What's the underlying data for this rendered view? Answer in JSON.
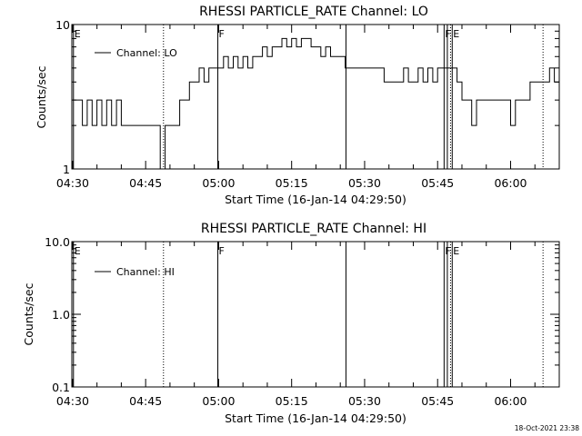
{
  "chart_data": [
    {
      "type": "line",
      "title": "RHESSI PARTICLE_RATE Channel: LO",
      "xlabel": "Start Time (16-Jan-14 04:29:50)",
      "ylabel": "Counts/sec",
      "yscale": "log",
      "ylim": [
        1,
        10
      ],
      "yticks": [
        "1",
        "10"
      ],
      "xlim": [
        "04:29:50",
        "06:10:00"
      ],
      "xticks": [
        "04:30",
        "04:45",
        "05:00",
        "05:15",
        "05:30",
        "05:45",
        "06:00"
      ],
      "grid": false,
      "legend_position": "top-left",
      "series": [
        {
          "name": "Channel: LO",
          "x": [
            "04:30",
            "04:31",
            "04:32",
            "04:33",
            "04:34",
            "04:35",
            "04:36",
            "04:37",
            "04:38",
            "04:39",
            "04:40",
            "04:41",
            "04:42",
            "04:43",
            "04:44",
            "04:45",
            "04:46",
            "04:47",
            "04:48",
            "04:49",
            "04:50",
            "04:51",
            "04:52",
            "04:53",
            "04:54",
            "04:55",
            "04:56",
            "04:57",
            "04:58",
            "04:59",
            "05:00",
            "05:01",
            "05:02",
            "05:03",
            "05:04",
            "05:05",
            "05:06",
            "05:07",
            "05:08",
            "05:09",
            "05:10",
            "05:11",
            "05:12",
            "05:13",
            "05:14",
            "05:15",
            "05:16",
            "05:17",
            "05:18",
            "05:19",
            "05:20",
            "05:21",
            "05:22",
            "05:23",
            "05:24",
            "05:25",
            "05:26",
            "05:27",
            "05:28",
            "05:29",
            "05:30",
            "05:31",
            "05:32",
            "05:33",
            "05:34",
            "05:35",
            "05:36",
            "05:37",
            "05:38",
            "05:39",
            "05:40",
            "05:41",
            "05:42",
            "05:43",
            "05:44",
            "05:45",
            "05:46",
            "05:47",
            "05:48",
            "05:49",
            "05:50",
            "05:51",
            "05:52",
            "05:53",
            "05:54",
            "05:55",
            "05:56",
            "05:57",
            "05:58",
            "05:59",
            "06:00",
            "06:01",
            "06:02",
            "06:03",
            "06:04",
            "06:05",
            "06:06",
            "06:07",
            "06:08",
            "06:09"
          ],
          "y": [
            3,
            3,
            2,
            3,
            2,
            3,
            2,
            3,
            2,
            3,
            2,
            2,
            2,
            2,
            2,
            2,
            2,
            2,
            1,
            2,
            2,
            2,
            3,
            3,
            4,
            4,
            5,
            4,
            5,
            5,
            5,
            6,
            5,
            6,
            5,
            6,
            5,
            6,
            6,
            7,
            6,
            7,
            7,
            8,
            7,
            8,
            7,
            8,
            8,
            7,
            7,
            6,
            7,
            6,
            6,
            6,
            5,
            5,
            5,
            5,
            5,
            5,
            5,
            5,
            4,
            4,
            4,
            4,
            5,
            4,
            4,
            5,
            4,
            5,
            4,
            5,
            5,
            5,
            5,
            4,
            3,
            3,
            2,
            3,
            3,
            3,
            3,
            3,
            3,
            3,
            2,
            3,
            3,
            3,
            4,
            4,
            4,
            4,
            5,
            4
          ]
        }
      ],
      "annotations": [
        {
          "label": "E",
          "time": "04:30:10",
          "style": "solid"
        },
        {
          "label": "",
          "time": "04:48:40",
          "style": "dotted"
        },
        {
          "label": "F",
          "time": "04:59:50",
          "style": "solid"
        },
        {
          "label": "",
          "time": "05:26:10",
          "style": "solid"
        },
        {
          "label": "F",
          "time": "05:46:20",
          "style": "solid"
        },
        {
          "label": "",
          "time": "05:47:00",
          "style": "solid"
        },
        {
          "label": "",
          "time": "05:47:40",
          "style": "dotted"
        },
        {
          "label": "E",
          "time": "05:48:00",
          "style": "solid"
        },
        {
          "label": "",
          "time": "06:06:40",
          "style": "dotted"
        }
      ]
    },
    {
      "type": "line",
      "title": "RHESSI PARTICLE_RATE Channel: HI",
      "xlabel": "Start Time (16-Jan-14 04:29:50)",
      "ylabel": "Counts/sec",
      "yscale": "log",
      "ylim": [
        0.1,
        10
      ],
      "yticks": [
        "0.1",
        "1.0",
        "10.0"
      ],
      "xlim": [
        "04:29:50",
        "06:10:00"
      ],
      "xticks": [
        "04:30",
        "04:45",
        "05:00",
        "05:15",
        "05:30",
        "05:45",
        "06:00"
      ],
      "grid": false,
      "legend_position": "top-left",
      "series": [
        {
          "name": "Channel: HI",
          "x": [],
          "y": []
        }
      ],
      "annotations": [
        {
          "label": "E",
          "time": "04:30:10",
          "style": "solid"
        },
        {
          "label": "",
          "time": "04:48:40",
          "style": "dotted"
        },
        {
          "label": "F",
          "time": "04:59:50",
          "style": "solid"
        },
        {
          "label": "",
          "time": "05:26:10",
          "style": "solid"
        },
        {
          "label": "F",
          "time": "05:46:20",
          "style": "solid"
        },
        {
          "label": "",
          "time": "05:47:00",
          "style": "solid"
        },
        {
          "label": "",
          "time": "05:47:40",
          "style": "dotted"
        },
        {
          "label": "E",
          "time": "05:48:00",
          "style": "solid"
        },
        {
          "label": "",
          "time": "06:06:40",
          "style": "dotted"
        }
      ]
    }
  ],
  "footer": {
    "timestamp": "18-Oct-2021 23:38"
  }
}
